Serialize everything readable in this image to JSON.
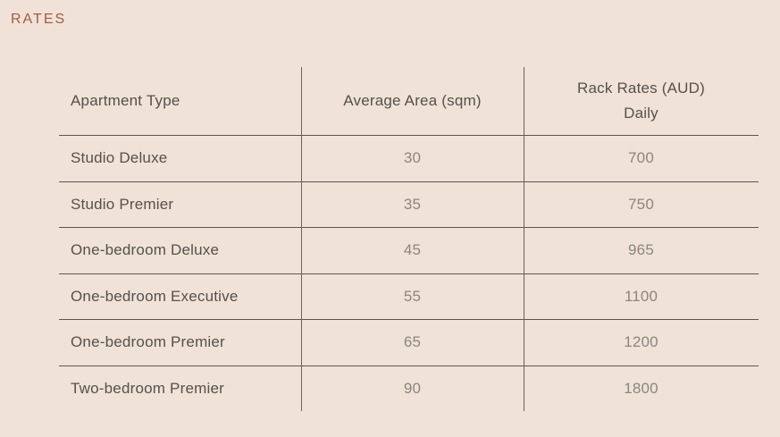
{
  "title": "RATES",
  "colors": {
    "background": "#f0e2d7",
    "title_accent": "#a25c41",
    "rule_line": "#5b5751",
    "label_text": "#55514b",
    "value_text": "#8b8680"
  },
  "table": {
    "headers": {
      "apartment_type": "Apartment Type",
      "average_area": "Average Area (sqm)",
      "rack_rates_line1": "Rack Rates (AUD)",
      "rack_rates_line2": "Daily"
    },
    "rows": [
      {
        "apartment_type": "Studio Deluxe",
        "average_area_sqm": "30",
        "rack_rate_aud_daily": "700"
      },
      {
        "apartment_type": "Studio Premier",
        "average_area_sqm": "35",
        "rack_rate_aud_daily": "750"
      },
      {
        "apartment_type": "One-bedroom Deluxe",
        "average_area_sqm": "45",
        "rack_rate_aud_daily": "965"
      },
      {
        "apartment_type": "One-bedroom Executive",
        "average_area_sqm": "55",
        "rack_rate_aud_daily": "1100"
      },
      {
        "apartment_type": "One-bedroom Premier",
        "average_area_sqm": "65",
        "rack_rate_aud_daily": "1200"
      },
      {
        "apartment_type": "Two-bedroom Premier",
        "average_area_sqm": "90",
        "rack_rate_aud_daily": "1800"
      }
    ]
  }
}
